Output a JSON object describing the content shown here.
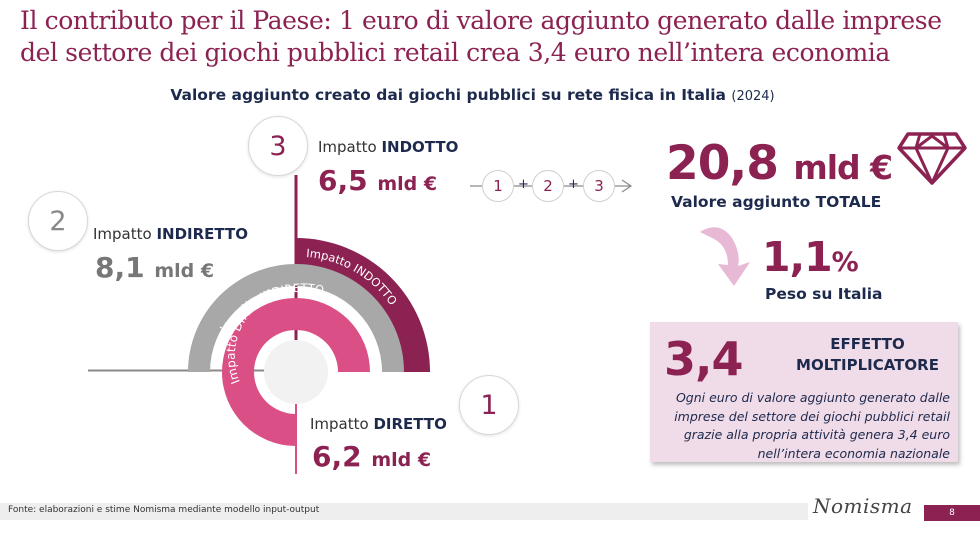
{
  "title": {
    "line1": "Il contributo per il Paese: 1 euro di valore aggiunto generato dalle imprese",
    "line2": "del settore dei giochi pubblici retail crea 3,4 euro nell’intera economia"
  },
  "subtitle": {
    "text": "Valore aggiunto creato dai giochi pubblici su rete fisica in Italia",
    "year": "(2024)"
  },
  "impacts": {
    "indotto": {
      "number": "3",
      "prefix": "Impatto ",
      "name": "INDOTTO",
      "value": "6,5",
      "unit": "mld €",
      "arc_label": "Impatto INDOTTO"
    },
    "indiretto": {
      "number": "2",
      "prefix": "Impatto ",
      "name": "INDIRETTO",
      "value": "8,1",
      "unit": "mld €",
      "arc_label": "Impatto INDIRETTO"
    },
    "diretto": {
      "number": "1",
      "prefix": "Impatto ",
      "name": "DIRETTO",
      "value": "6,2",
      "unit": "mld €",
      "arc_label": "Impatto DIRETTO"
    }
  },
  "sum": {
    "a": "1",
    "b": "2",
    "c": "3",
    "plus": "+"
  },
  "total": {
    "value": "20,8",
    "unit": "mld €",
    "label": "Valore aggiunto TOTALE"
  },
  "share": {
    "value": "1,1",
    "unit": "%",
    "label": "Peso su Italia"
  },
  "multiplier": {
    "value": "3,4",
    "title_line1": "EFFETTO",
    "title_line2": "MOLTIPLICATORE",
    "desc_lines": [
      "Ogni euro di valore aggiunto generato dalle",
      "imprese del settore dei giochi pubblici retail",
      "grazie alla propria attività genera 3,4 euro",
      "nell’intera economia nazionale"
    ]
  },
  "footer": {
    "source": "Fonte: elaborazioni e stime Nomisma mediante modello input-output",
    "logo": "Nomisma",
    "page": "8"
  },
  "colors": {
    "accent": "#8b2252",
    "navy": "#1d2a4d",
    "pink": "#d94f86",
    "gray": "#a8a8a8",
    "light_pink": "#f0dbe8"
  },
  "icons": {
    "total": "diamond-icon",
    "share": "curved-arrow-icon",
    "sum": "arrow-right-icon"
  }
}
